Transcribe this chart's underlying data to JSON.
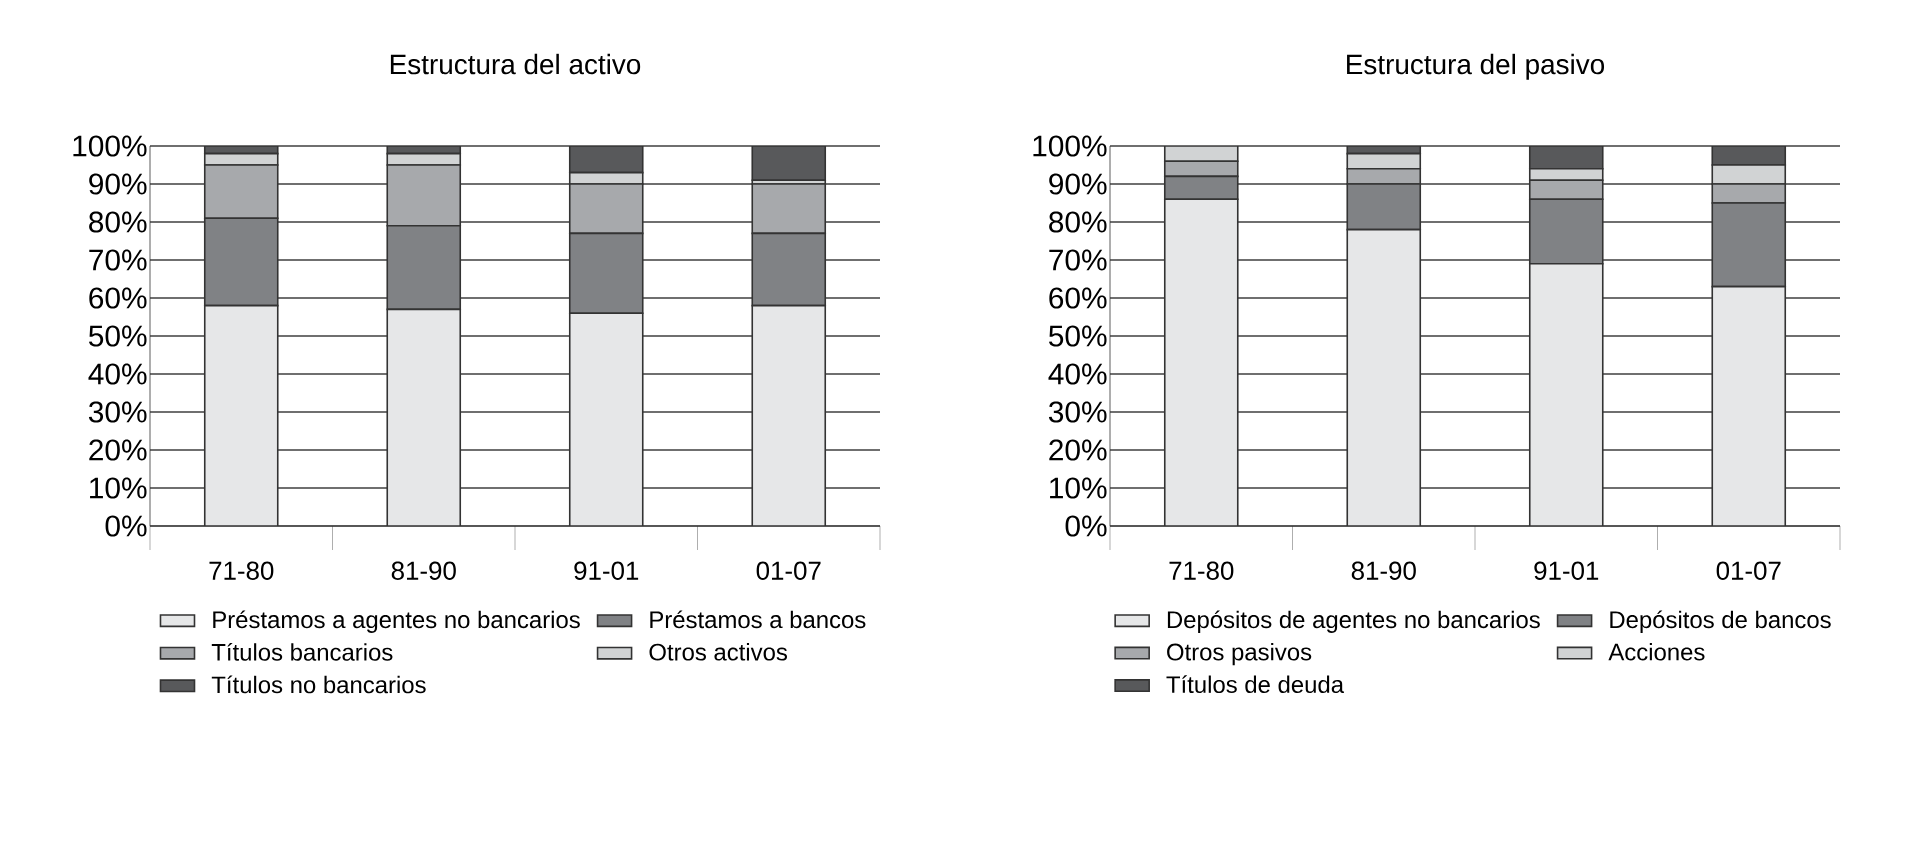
{
  "chart_data": [
    {
      "type": "bar",
      "stacked": true,
      "title": "Estructura del activo",
      "categories": [
        "71-80",
        "81-90",
        "91-01",
        "01-07"
      ],
      "ylim": [
        0,
        100
      ],
      "yticks": [
        {
          "value": 0,
          "label": "0%"
        },
        {
          "value": 10,
          "label": "10%"
        },
        {
          "value": 20,
          "label": "20%"
        },
        {
          "value": 30,
          "label": "30%"
        },
        {
          "value": 40,
          "label": "40%"
        },
        {
          "value": 50,
          "label": "50%"
        },
        {
          "value": 60,
          "label": "60%"
        },
        {
          "value": 70,
          "label": "70%"
        },
        {
          "value": 80,
          "label": "80%"
        },
        {
          "value": 90,
          "label": "90%"
        },
        {
          "value": 100,
          "label": "100%"
        }
      ],
      "grid": "y",
      "legend": "bottom",
      "series": [
        {
          "name": "Préstamos a agentes no bancarios",
          "color": "#e6e7e8",
          "values": [
            58,
            57,
            56,
            58
          ]
        },
        {
          "name": "Préstamos a bancos",
          "color": "#808285",
          "values": [
            23,
            22,
            21,
            19
          ]
        },
        {
          "name": "Títulos bancarios",
          "color": "#a7a9ac",
          "values": [
            14,
            16,
            13,
            13
          ]
        },
        {
          "name": "Otros activos",
          "color": "#d1d3d4",
          "values": [
            3,
            3,
            3,
            1
          ]
        },
        {
          "name": "Títulos no bancarios",
          "color": "#58595b",
          "values": [
            2,
            2,
            7,
            9
          ]
        }
      ]
    },
    {
      "type": "bar",
      "stacked": true,
      "title": "Estructura del pasivo",
      "categories": [
        "71-80",
        "81-90",
        "91-01",
        "01-07"
      ],
      "ylim": [
        0,
        100
      ],
      "yticks": [
        {
          "value": 0,
          "label": "0%"
        },
        {
          "value": 10,
          "label": "10%"
        },
        {
          "value": 20,
          "label": "20%"
        },
        {
          "value": 30,
          "label": "30%"
        },
        {
          "value": 40,
          "label": "40%"
        },
        {
          "value": 50,
          "label": "50%"
        },
        {
          "value": 60,
          "label": "60%"
        },
        {
          "value": 70,
          "label": "70%"
        },
        {
          "value": 80,
          "label": "80%"
        },
        {
          "value": 90,
          "label": "90%"
        },
        {
          "value": 100,
          "label": "100%"
        }
      ],
      "grid": "y",
      "legend": "bottom",
      "series": [
        {
          "name": "Depósitos de agentes no bancarios",
          "color": "#e6e7e8",
          "values": [
            86,
            78,
            69,
            63
          ]
        },
        {
          "name": "Depósitos de bancos",
          "color": "#808285",
          "values": [
            6,
            12,
            17,
            22
          ]
        },
        {
          "name": "Otros pasivos",
          "color": "#a7a9ac",
          "values": [
            4,
            4,
            5,
            5
          ]
        },
        {
          "name": "Acciones",
          "color": "#d1d3d4",
          "values": [
            4,
            4,
            3,
            5
          ]
        },
        {
          "name": "Títulos de deuda",
          "color": "#58595b",
          "values": [
            0,
            2,
            6,
            5
          ]
        }
      ]
    }
  ]
}
